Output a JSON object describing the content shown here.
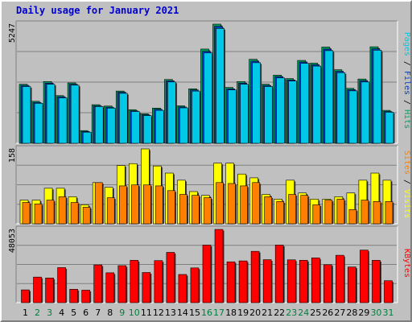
{
  "title": "Daily usage for January 2021",
  "colors": {
    "title": "#0000cc",
    "pages": "#00c8e6",
    "files": "#0040c0",
    "hits": "#00a060",
    "sites": "#ff8000",
    "visits": "#ffff00",
    "kbytes": "#ff0000",
    "weekend_day": "#008040",
    "weekday_day": "#000000",
    "panel_bg": "#c0c0c0",
    "grid": "#808080"
  },
  "labels": {
    "pages": "Pages",
    "files": "Files",
    "hits": "Hits",
    "sites": "Sites",
    "visits": "Visits",
    "kbytes": "KBytes",
    "sep": " / "
  },
  "chart_data": {
    "type": "bar",
    "categories": [
      "1",
      "2",
      "3",
      "4",
      "5",
      "6",
      "7",
      "8",
      "9",
      "10",
      "11",
      "12",
      "13",
      "14",
      "15",
      "16",
      "17",
      "18",
      "19",
      "20",
      "21",
      "22",
      "23",
      "24",
      "25",
      "26",
      "27",
      "28",
      "29",
      "30",
      "31"
    ],
    "weekend_days": [
      "2",
      "3",
      "9",
      "10",
      "16",
      "17",
      "23",
      "24",
      "30",
      "31"
    ],
    "panels": [
      {
        "name": "hits",
        "max_label": "5247",
        "ylim": [
          0,
          5247
        ],
        "series": [
          {
            "name": "Hits",
            "values": [
              2600,
              1850,
              2720,
              2100,
              2660,
              560,
              1700,
              1640,
              2300,
              1480,
              1300,
              1550,
              2810,
              1650,
              2400,
              4150,
              5247,
              2460,
              2720,
              3700,
              2600,
              3000,
              2850,
              3650,
              3530,
              4240,
              3240,
              2420,
              2830,
              4250,
              1450
            ]
          },
          {
            "name": "Files",
            "values": [
              2550,
              1800,
              2650,
              2050,
              2600,
              520,
              1650,
              1590,
              2250,
              1430,
              1250,
              1500,
              2750,
              1600,
              2350,
              4050,
              5150,
              2400,
              2650,
              3620,
              2550,
              2940,
              2790,
              3580,
              3460,
              4150,
              3170,
              2360,
              2760,
              4160,
              1400
            ]
          },
          {
            "name": "Pages",
            "values": [
              2500,
              1760,
              2600,
              2000,
              2560,
              490,
              1620,
              1550,
              2200,
              1400,
              1220,
              1450,
              2700,
              1560,
              2300,
              3980,
              5060,
              2350,
              2600,
              3550,
              2500,
              2880,
              2740,
              3520,
              3400,
              4080,
              3110,
              2310,
              2700,
              4100,
              1370
            ]
          }
        ]
      },
      {
        "name": "visits",
        "max_label": "158",
        "ylim": [
          0,
          158
        ],
        "series": [
          {
            "name": "Visits",
            "values": [
              50,
              50,
              75,
              75,
              57,
              40,
              87,
              77,
              123,
              127,
              158,
              122,
              107,
              92,
              68,
              60,
              128,
              128,
              105,
              97,
              62,
              52,
              92,
              65,
              52,
              52,
              57,
              65,
              92,
              107,
              92
            ]
          },
          {
            "name": "Sites",
            "values": [
              45,
              42,
              50,
              57,
              45,
              35,
              87,
              55,
              80,
              82,
              82,
              80,
              70,
              62,
              60,
              55,
              87,
              85,
              80,
              87,
              57,
              47,
              62,
              60,
              40,
              50,
              52,
              30,
              50,
              47,
              47
            ]
          }
        ]
      },
      {
        "name": "kbytes",
        "max_label": "48053",
        "ylim": [
          0,
          48053
        ],
        "series": [
          {
            "name": "KBytes",
            "values": [
              8400,
              16800,
              16200,
              23000,
              8800,
              8200,
              24800,
              19600,
              24300,
              27800,
              19800,
              27600,
              33000,
              18500,
              22800,
              37800,
              48053,
              26800,
              27400,
              33700,
              28200,
              37800,
              28100,
              27800,
              29400,
              24900,
              31100,
              23400,
              34500,
              27800,
              14400
            ]
          }
        ]
      }
    ]
  }
}
